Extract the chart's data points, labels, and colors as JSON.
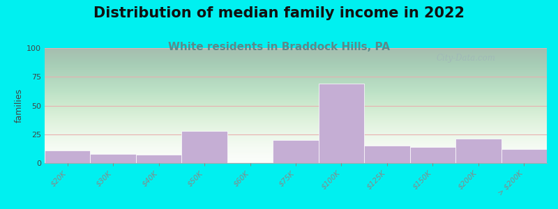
{
  "title": "Distribution of median family income in 2022",
  "subtitle": "White residents in Braddock Hills, PA",
  "categories": [
    "$20K",
    "$30K",
    "$40K",
    "$50K",
    "$60K",
    "$75K",
    "$100K",
    "$125K",
    "$150K",
    "$200K",
    "> $200K"
  ],
  "values": [
    11,
    8,
    7,
    28,
    0,
    20,
    69,
    15,
    14,
    21,
    12
  ],
  "bar_color": "#c5aed4",
  "ylabel": "families",
  "ylim": [
    0,
    100
  ],
  "yticks": [
    0,
    25,
    50,
    75,
    100
  ],
  "bg_outer": "#00f0f0",
  "grid_color": "#e8b0b0",
  "title_fontsize": 15,
  "subtitle_fontsize": 11,
  "subtitle_color": "#5a8a8a",
  "watermark_text": "City-Data.com",
  "watermark_color": "#a0b8b8",
  "title_color": "#111111"
}
